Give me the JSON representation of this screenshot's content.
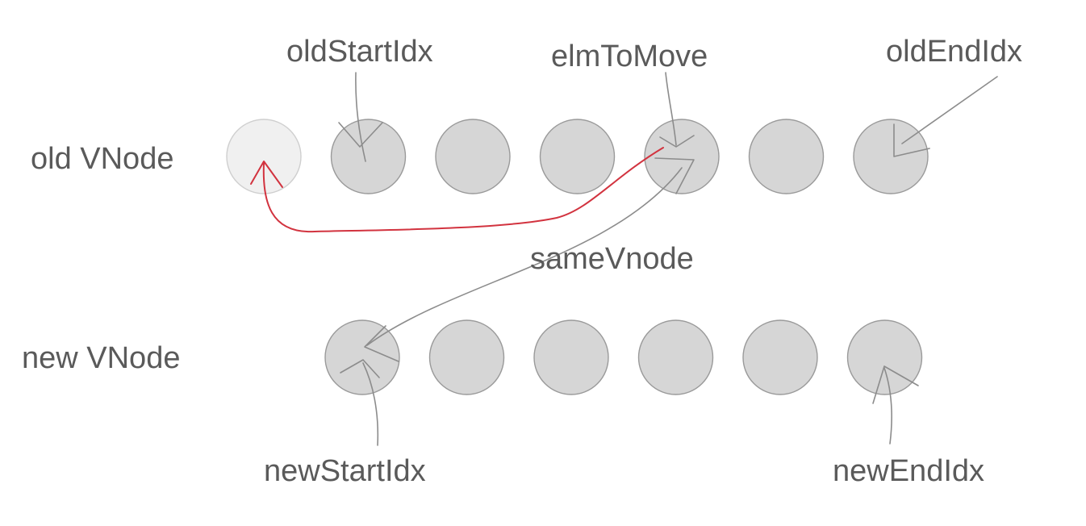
{
  "rows": {
    "old": {
      "label": "old VNode",
      "nodes": [
        {
          "state": "moved"
        },
        {
          "state": "normal"
        },
        {
          "state": "normal"
        },
        {
          "state": "normal"
        },
        {
          "state": "normal"
        },
        {
          "state": "normal"
        },
        {
          "state": "normal"
        }
      ]
    },
    "new": {
      "label": "new VNode",
      "nodes": [
        {
          "state": "normal"
        },
        {
          "state": "normal"
        },
        {
          "state": "normal"
        },
        {
          "state": "normal"
        },
        {
          "state": "normal"
        },
        {
          "state": "normal"
        }
      ]
    }
  },
  "pointers": {
    "oldStartIdx": "oldStartIdx",
    "elmToMove": "elmToMove",
    "oldEndIdx": "oldEndIdx",
    "sameVnode": "sameVnode",
    "newStartIdx": "newStartIdx",
    "newEndIdx": "newEndIdx"
  },
  "colors": {
    "node_fill": "#d6d6d6",
    "node_stroke": "#9a9a9a",
    "moved_fill": "#f0f0f0",
    "moved_stroke": "#cfcfcf",
    "pointer_line": "#8c8c8c",
    "move_arrow": "#d2333f",
    "text": "#5a5a5a"
  }
}
